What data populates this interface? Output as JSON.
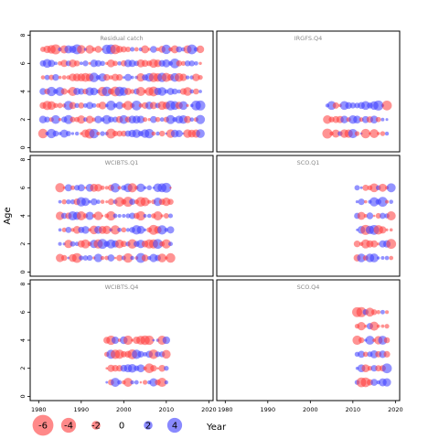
{
  "chart_data": {
    "type": "scatter",
    "subtype": "bubble-residuals",
    "xlabel": "Year",
    "ylabel": "Age",
    "xlim": [
      1978,
      2021
    ],
    "ylim": [
      -0.3,
      8.3
    ],
    "x_ticks": [
      1980,
      1990,
      2000,
      2010,
      2020
    ],
    "y_ticks": [
      0,
      2,
      4,
      6,
      8
    ],
    "colors": {
      "negative": "#ff3b3b",
      "positive": "#3b3bff"
    },
    "legend": {
      "placement": "bottom-left",
      "values": [
        -6,
        -4,
        -2,
        0,
        2,
        4
      ],
      "labels": [
        "-6",
        "-4",
        "-2",
        "0",
        "2",
        "4"
      ]
    },
    "panels": [
      {
        "title": "Residual catch",
        "pattern": "p3",
        "years": [
          1981,
          2018
        ],
        "ages": [
          1,
          2,
          3,
          4,
          5,
          6,
          7
        ]
      },
      {
        "title": "IRGFS.Q4",
        "pattern": "p2",
        "years": [
          2004,
          2018
        ],
        "ages": [
          1,
          2,
          3
        ]
      },
      {
        "title": "WCIBTS.Q1",
        "pattern": "p1",
        "years": [
          1985,
          2011
        ],
        "ages": [
          1,
          2,
          3,
          4,
          5,
          6
        ]
      },
      {
        "title": "SCO.Q1",
        "pattern": "p5",
        "years": [
          2011,
          2019
        ],
        "ages": [
          1,
          2,
          3,
          4,
          5,
          6
        ]
      },
      {
        "title": "WCIBTS.Q4",
        "pattern": "p4",
        "years": [
          1996,
          2010
        ],
        "ages": [
          1,
          2,
          3,
          4
        ]
      },
      {
        "title": "SCO.Q4",
        "pattern": "p6",
        "years": [
          2011,
          2018
        ],
        "ages": [
          1,
          2,
          3,
          4,
          5,
          6
        ]
      }
    ]
  }
}
